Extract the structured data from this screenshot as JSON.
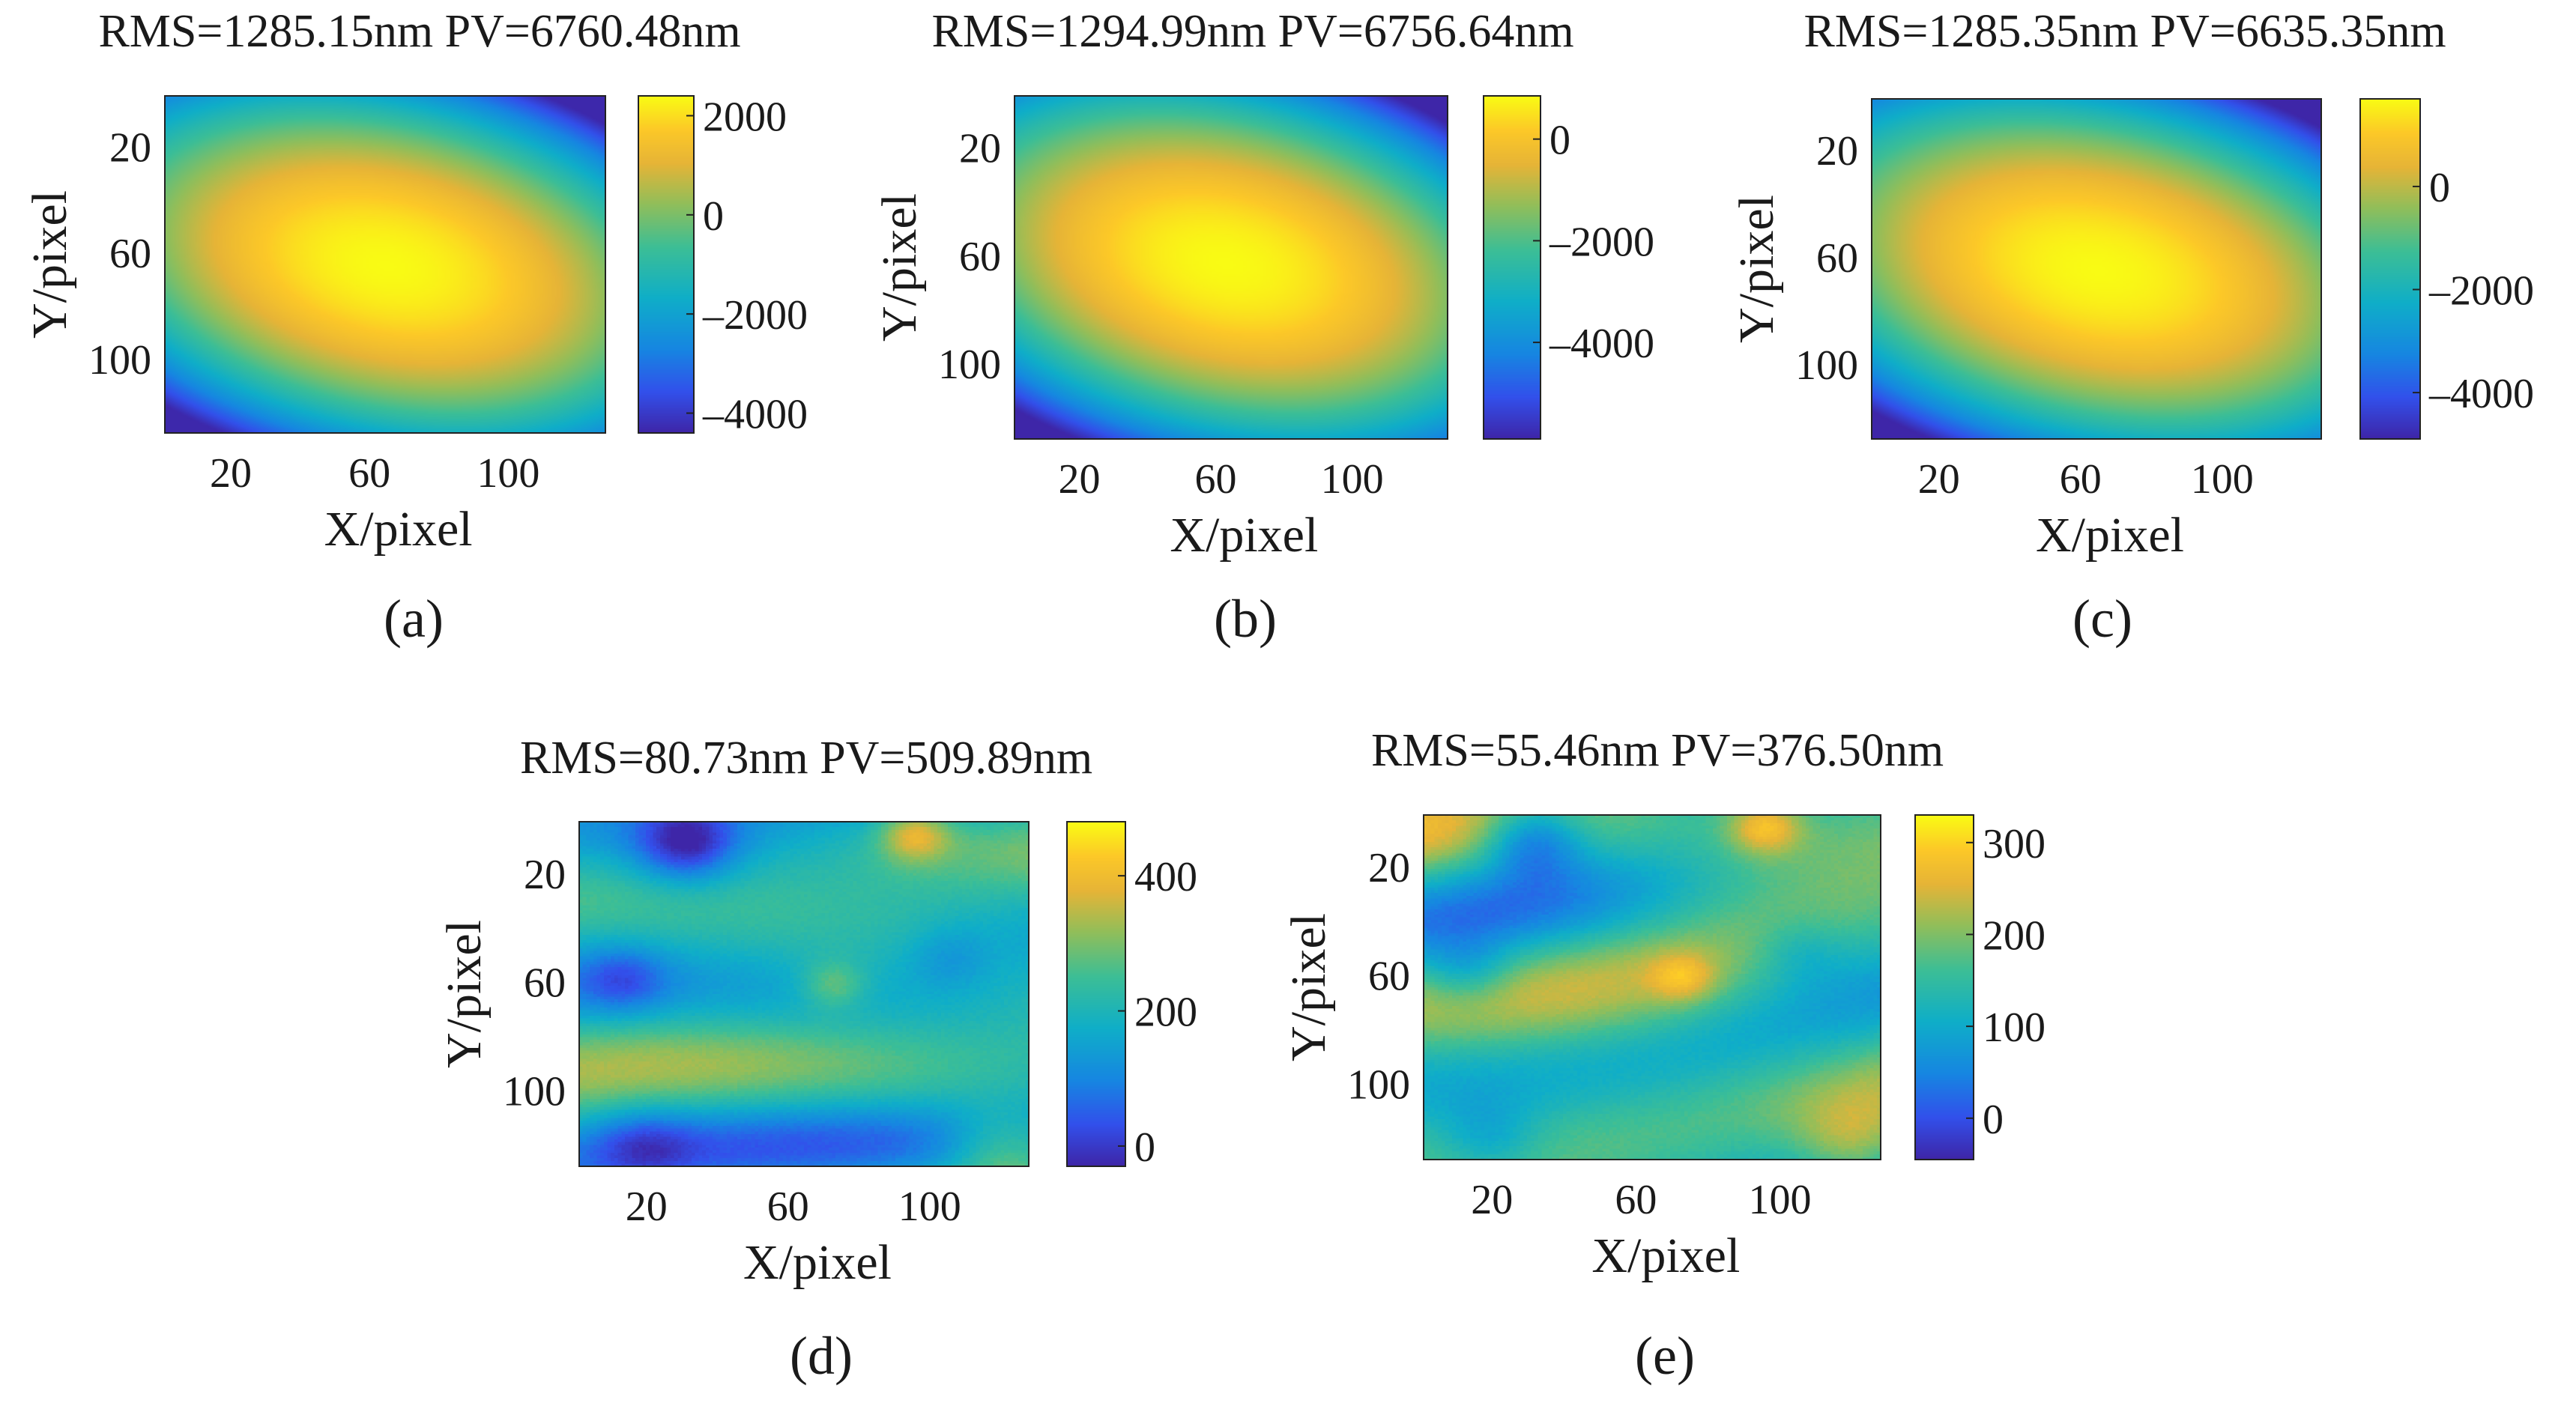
{
  "figure": {
    "panel_labels": [
      "(a)",
      "(b)",
      "(c)",
      "(d)",
      "(e)"
    ]
  },
  "chart_data": [
    {
      "panel": "a",
      "type": "heatmap",
      "title": "RMS=1285.15nm PV=6760.48nm",
      "xlabel": "X/pixel",
      "ylabel": "Y/pixel",
      "xlim": [
        1,
        128
      ],
      "ylim": [
        1,
        128
      ],
      "xticks": [
        20,
        60,
        100
      ],
      "yticks": [
        20,
        60,
        100
      ],
      "colorbar": {
        "min": -4400,
        "max": 2400,
        "ticks": [
          2000,
          0,
          -2000,
          -4000
        ]
      },
      "surface": "paraboloid",
      "center": [
        64,
        64
      ],
      "peak": 2400,
      "extreme": -4360,
      "tilt": 0.32
    },
    {
      "panel": "b",
      "type": "heatmap",
      "title": "RMS=1294.99nm PV=6756.64nm",
      "xlabel": "X/pixel",
      "ylabel": "Y/pixel",
      "xlim": [
        1,
        128
      ],
      "ylim": [
        1,
        128
      ],
      "xticks": [
        20,
        60,
        100
      ],
      "yticks": [
        20,
        60,
        100
      ],
      "colorbar": {
        "min": -5900,
        "max": 850,
        "ticks": [
          0,
          -2000,
          -4000
        ]
      },
      "surface": "paraboloid",
      "center": [
        62,
        62
      ],
      "peak": 850,
      "extreme": -5900,
      "tilt": 0.32
    },
    {
      "panel": "c",
      "type": "heatmap",
      "title": "RMS=1285.35nm PV=6635.35nm",
      "xlabel": "X/pixel",
      "ylabel": "Y/pixel",
      "xlim": [
        1,
        128
      ],
      "ylim": [
        1,
        128
      ],
      "xticks": [
        20,
        60,
        100
      ],
      "yticks": [
        20,
        60,
        100
      ],
      "colorbar": {
        "min": -4900,
        "max": 1700,
        "ticks": [
          0,
          -2000,
          -4000
        ]
      },
      "surface": "paraboloid",
      "center": [
        64,
        64
      ],
      "peak": 1700,
      "extreme": -4900,
      "tilt": 0.32
    },
    {
      "panel": "d",
      "type": "heatmap",
      "title": "RMS=80.73nm PV=509.89nm",
      "xlabel": "X/pixel",
      "ylabel": "Y/pixel",
      "xlim": [
        1,
        128
      ],
      "ylim": [
        1,
        128
      ],
      "xticks": [
        20,
        60,
        100
      ],
      "yticks": [
        20,
        60,
        100
      ],
      "colorbar": {
        "min": -30,
        "max": 480,
        "ticks": [
          400,
          200,
          0
        ]
      },
      "surface": "residual",
      "base": 200,
      "amplitude": 150,
      "seed": 3
    },
    {
      "panel": "e",
      "type": "heatmap",
      "title": "RMS=55.46nm PV=376.50nm",
      "xlabel": "X/pixel",
      "ylabel": "Y/pixel",
      "xlim": [
        1,
        128
      ],
      "ylim": [
        1,
        128
      ],
      "xticks": [
        20,
        60,
        100
      ],
      "yticks": [
        20,
        60,
        100
      ],
      "colorbar": {
        "min": -45,
        "max": 330,
        "ticks": [
          300,
          200,
          100,
          0
        ]
      },
      "surface": "residual",
      "base": 150,
      "amplitude": 110,
      "seed": 7
    }
  ]
}
